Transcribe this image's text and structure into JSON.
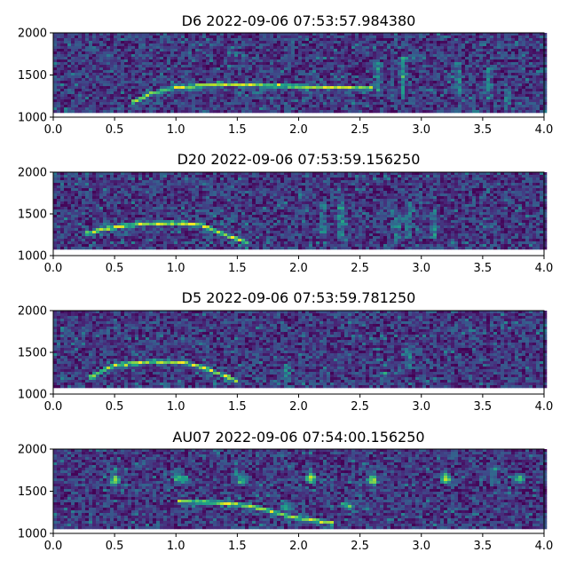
{
  "chart_data": [
    {
      "type": "heatmap",
      "title": "D6 2022-09-06 07:53:57.984380",
      "xlabel": "",
      "ylabel": "",
      "xlim": [
        0.0,
        4.0
      ],
      "ylim": [
        1000,
        2000
      ],
      "xticks": [
        "0.0",
        "0.5",
        "1.0",
        "1.5",
        "2.0",
        "2.5",
        "3.0",
        "3.5",
        "4.0"
      ],
      "yticks": [
        "1000",
        "1500",
        "2000"
      ],
      "colormap": "viridis",
      "data_ylim": [
        1080,
        2000
      ],
      "contour": [
        [
          0.65,
          1180
        ],
        [
          0.8,
          1280
        ],
        [
          1.0,
          1350
        ],
        [
          1.3,
          1390
        ],
        [
          1.6,
          1385
        ],
        [
          1.9,
          1370
        ],
        [
          2.2,
          1355
        ],
        [
          2.6,
          1345
        ]
      ],
      "ridges": [
        [
          2.65,
          1300,
          1650
        ],
        [
          2.85,
          1250,
          1720
        ],
        [
          3.3,
          1220,
          1650
        ],
        [
          3.55,
          1200,
          1600
        ],
        [
          3.7,
          1180,
          1350
        ]
      ]
    },
    {
      "type": "heatmap",
      "title": "D20 2022-09-06 07:53:59.156250",
      "xlabel": "",
      "ylabel": "",
      "xlim": [
        0.0,
        4.0
      ],
      "ylim": [
        1000,
        2000
      ],
      "xticks": [
        "0.0",
        "0.5",
        "1.0",
        "1.5",
        "2.0",
        "2.5",
        "3.0",
        "3.5",
        "4.0"
      ],
      "yticks": [
        "1000",
        "1500",
        "2000"
      ],
      "colormap": "viridis",
      "data_ylim": [
        1080,
        2000
      ],
      "contour": [
        [
          0.25,
          1250
        ],
        [
          0.4,
          1320
        ],
        [
          0.7,
          1380
        ],
        [
          1.0,
          1390
        ],
        [
          1.2,
          1370
        ],
        [
          1.4,
          1250
        ],
        [
          1.6,
          1150
        ]
      ],
      "ridges": [
        [
          2.2,
          1250,
          1650
        ],
        [
          2.35,
          1200,
          1700
        ],
        [
          2.8,
          1150,
          1500
        ],
        [
          2.9,
          1200,
          1650
        ],
        [
          3.1,
          1200,
          1550
        ]
      ]
    },
    {
      "type": "heatmap",
      "title": "D5 2022-09-06 07:53:59.781250",
      "xlabel": "",
      "ylabel": "",
      "xlim": [
        0.0,
        4.0
      ],
      "ylim": [
        1000,
        2000
      ],
      "xticks": [
        "0.0",
        "0.5",
        "1.0",
        "1.5",
        "2.0",
        "2.5",
        "3.0",
        "3.5",
        "4.0"
      ],
      "yticks": [
        "1000",
        "1500",
        "2000"
      ],
      "colormap": "viridis",
      "data_ylim": [
        1080,
        2000
      ],
      "contour": [
        [
          0.3,
          1200
        ],
        [
          0.5,
          1350
        ],
        [
          0.8,
          1390
        ],
        [
          1.05,
          1380
        ],
        [
          1.2,
          1330
        ],
        [
          1.4,
          1220
        ],
        [
          1.5,
          1150
        ]
      ],
      "ridges": [
        [
          1.9,
          1150,
          1350
        ],
        [
          2.7,
          1150,
          1250
        ],
        [
          2.9,
          1300,
          1600
        ]
      ]
    },
    {
      "type": "heatmap",
      "title": "AU07 2022-09-06 07:54:00.156250",
      "xlabel": "",
      "ylabel": "",
      "xlim": [
        0.0,
        4.0
      ],
      "ylim": [
        1000,
        2000
      ],
      "xticks": [
        "0.0",
        "0.5",
        "1.0",
        "1.5",
        "2.0",
        "2.5",
        "3.0",
        "3.5",
        "4.0"
      ],
      "yticks": [
        "1000",
        "1500",
        "2000"
      ],
      "colormap": "viridis",
      "data_ylim": [
        1080,
        2000
      ],
      "contour": [
        [
          1.0,
          1380
        ],
        [
          1.3,
          1370
        ],
        [
          1.6,
          1330
        ],
        [
          1.8,
          1250
        ],
        [
          2.0,
          1180
        ],
        [
          2.3,
          1120
        ]
      ],
      "ridges": [
        [
          0.5,
          1600,
          1800
        ],
        [
          1.0,
          1600,
          1780
        ],
        [
          1.5,
          1600,
          1780
        ],
        [
          2.1,
          1600,
          1780
        ],
        [
          2.6,
          1600,
          1780
        ],
        [
          3.2,
          1600,
          1780
        ],
        [
          3.6,
          1600,
          1780
        ]
      ],
      "blobs": [
        [
          0.5,
          1620
        ],
        [
          1.05,
          1650
        ],
        [
          1.55,
          1620
        ],
        [
          2.1,
          1650
        ],
        [
          2.6,
          1620
        ],
        [
          3.2,
          1640
        ],
        [
          3.8,
          1650
        ],
        [
          2.4,
          1330
        ],
        [
          1.9,
          1310
        ]
      ]
    }
  ]
}
